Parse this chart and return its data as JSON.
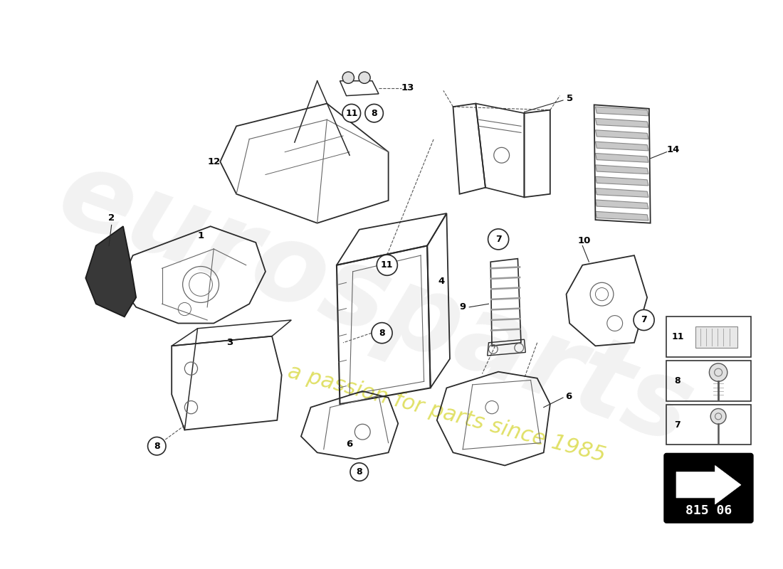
{
  "bg_color": "#ffffff",
  "watermark_text": "eurosparts",
  "watermark_subtext": "a passion for parts since 1985",
  "part_code": "815 06",
  "line_color": "#2a2a2a",
  "inner_color": "#666666"
}
